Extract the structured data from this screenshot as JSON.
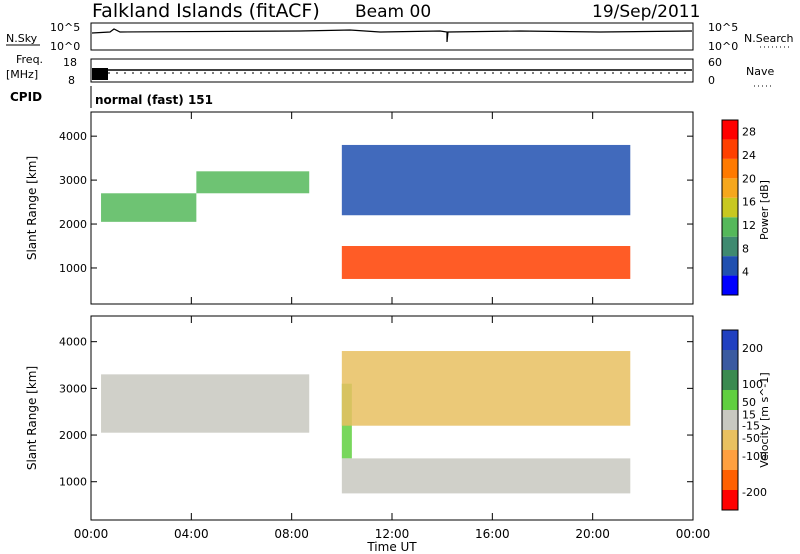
{
  "header": {
    "station": "Falkland Islands (fitACF)",
    "beam": "Beam 00",
    "date": "19/Sep/2011"
  },
  "labels": {
    "nsky": "N.Sky",
    "nsearch": "N.Search",
    "freq_line1": "Freq.",
    "freq_line2": "[MHz]",
    "nave": "Nave",
    "cpid": "CPID",
    "cpid_value": "normal (fast) 151",
    "noise_tick_top": "10^5",
    "noise_tick_bottom": "10^0",
    "freq_tick_top": "18",
    "freq_tick_bottom": "8",
    "nave_tick_top": "60",
    "nave_tick_bottom": "0"
  },
  "colors": {
    "power_scale": [
      "#0000ff",
      "#2050b0",
      "#3f8a70",
      "#55b85a",
      "#c8c820",
      "#f6a71c",
      "#ff7a00",
      "#ff4000",
      "#ff0000"
    ],
    "velocity_scale": [
      "#ff0000",
      "#ff6000",
      "#ffa040",
      "#e8c060",
      "#c8c8c0",
      "#60d040",
      "#3a8a50",
      "#3a5aa0",
      "#2040c0"
    ]
  },
  "chart_data": [
    {
      "type": "heatmap",
      "title": "",
      "quantity": "Power",
      "xlabel": "",
      "ylabel": "Slant Range [km]",
      "x_ticks": [
        "00:00",
        "04:00",
        "08:00",
        "12:00",
        "16:00",
        "20:00",
        "00:00"
      ],
      "x_range_hours": [
        0,
        24
      ],
      "y_ticks": [
        1000,
        2000,
        3000,
        4000
      ],
      "y_range_km": [
        180,
        4550
      ],
      "colorbar_label": "Power [dB]",
      "colorbar_ticks": [
        4,
        8,
        12,
        16,
        20,
        24,
        28
      ],
      "colorbar_range": [
        0,
        30
      ],
      "regions": [
        {
          "t_start": 0.4,
          "t_end": 4.2,
          "range_low": 2050,
          "range_high": 2700,
          "value": 12
        },
        {
          "t_start": 4.2,
          "t_end": 8.7,
          "range_low": 2700,
          "range_high": 3200,
          "value": 10
        },
        {
          "t_start": 10.0,
          "t_end": 21.5,
          "range_low": 750,
          "range_high": 1500,
          "value": 24
        },
        {
          "t_start": 10.0,
          "t_end": 21.5,
          "range_low": 2200,
          "range_high": 3800,
          "value": 6
        }
      ]
    },
    {
      "type": "heatmap",
      "title": "",
      "quantity": "Velocity",
      "xlabel": "Time UT",
      "ylabel": "Slant Range [km]",
      "x_ticks": [
        "00:00",
        "04:00",
        "08:00",
        "12:00",
        "16:00",
        "20:00",
        "00:00"
      ],
      "x_range_hours": [
        0,
        24
      ],
      "y_ticks": [
        1000,
        2000,
        3000,
        4000
      ],
      "y_range_km": [
        180,
        4550
      ],
      "colorbar_label": "Velocity [m s^-1]",
      "colorbar_ticks": [
        -200,
        -100,
        -50,
        -15,
        15,
        50,
        100,
        200
      ],
      "colorbar_range": [
        -250,
        250
      ],
      "regions": [
        {
          "t_start": 0.4,
          "t_end": 8.7,
          "range_low": 2050,
          "range_high": 3300,
          "value": 0
        },
        {
          "t_start": 10.0,
          "t_end": 10.4,
          "range_low": 1500,
          "range_high": 3100,
          "value": 30
        },
        {
          "t_start": 10.0,
          "t_end": 21.5,
          "range_low": 750,
          "range_high": 1500,
          "value": 0
        },
        {
          "t_start": 10.0,
          "t_end": 21.5,
          "range_low": 2200,
          "range_high": 3800,
          "value": -30
        }
      ]
    }
  ]
}
